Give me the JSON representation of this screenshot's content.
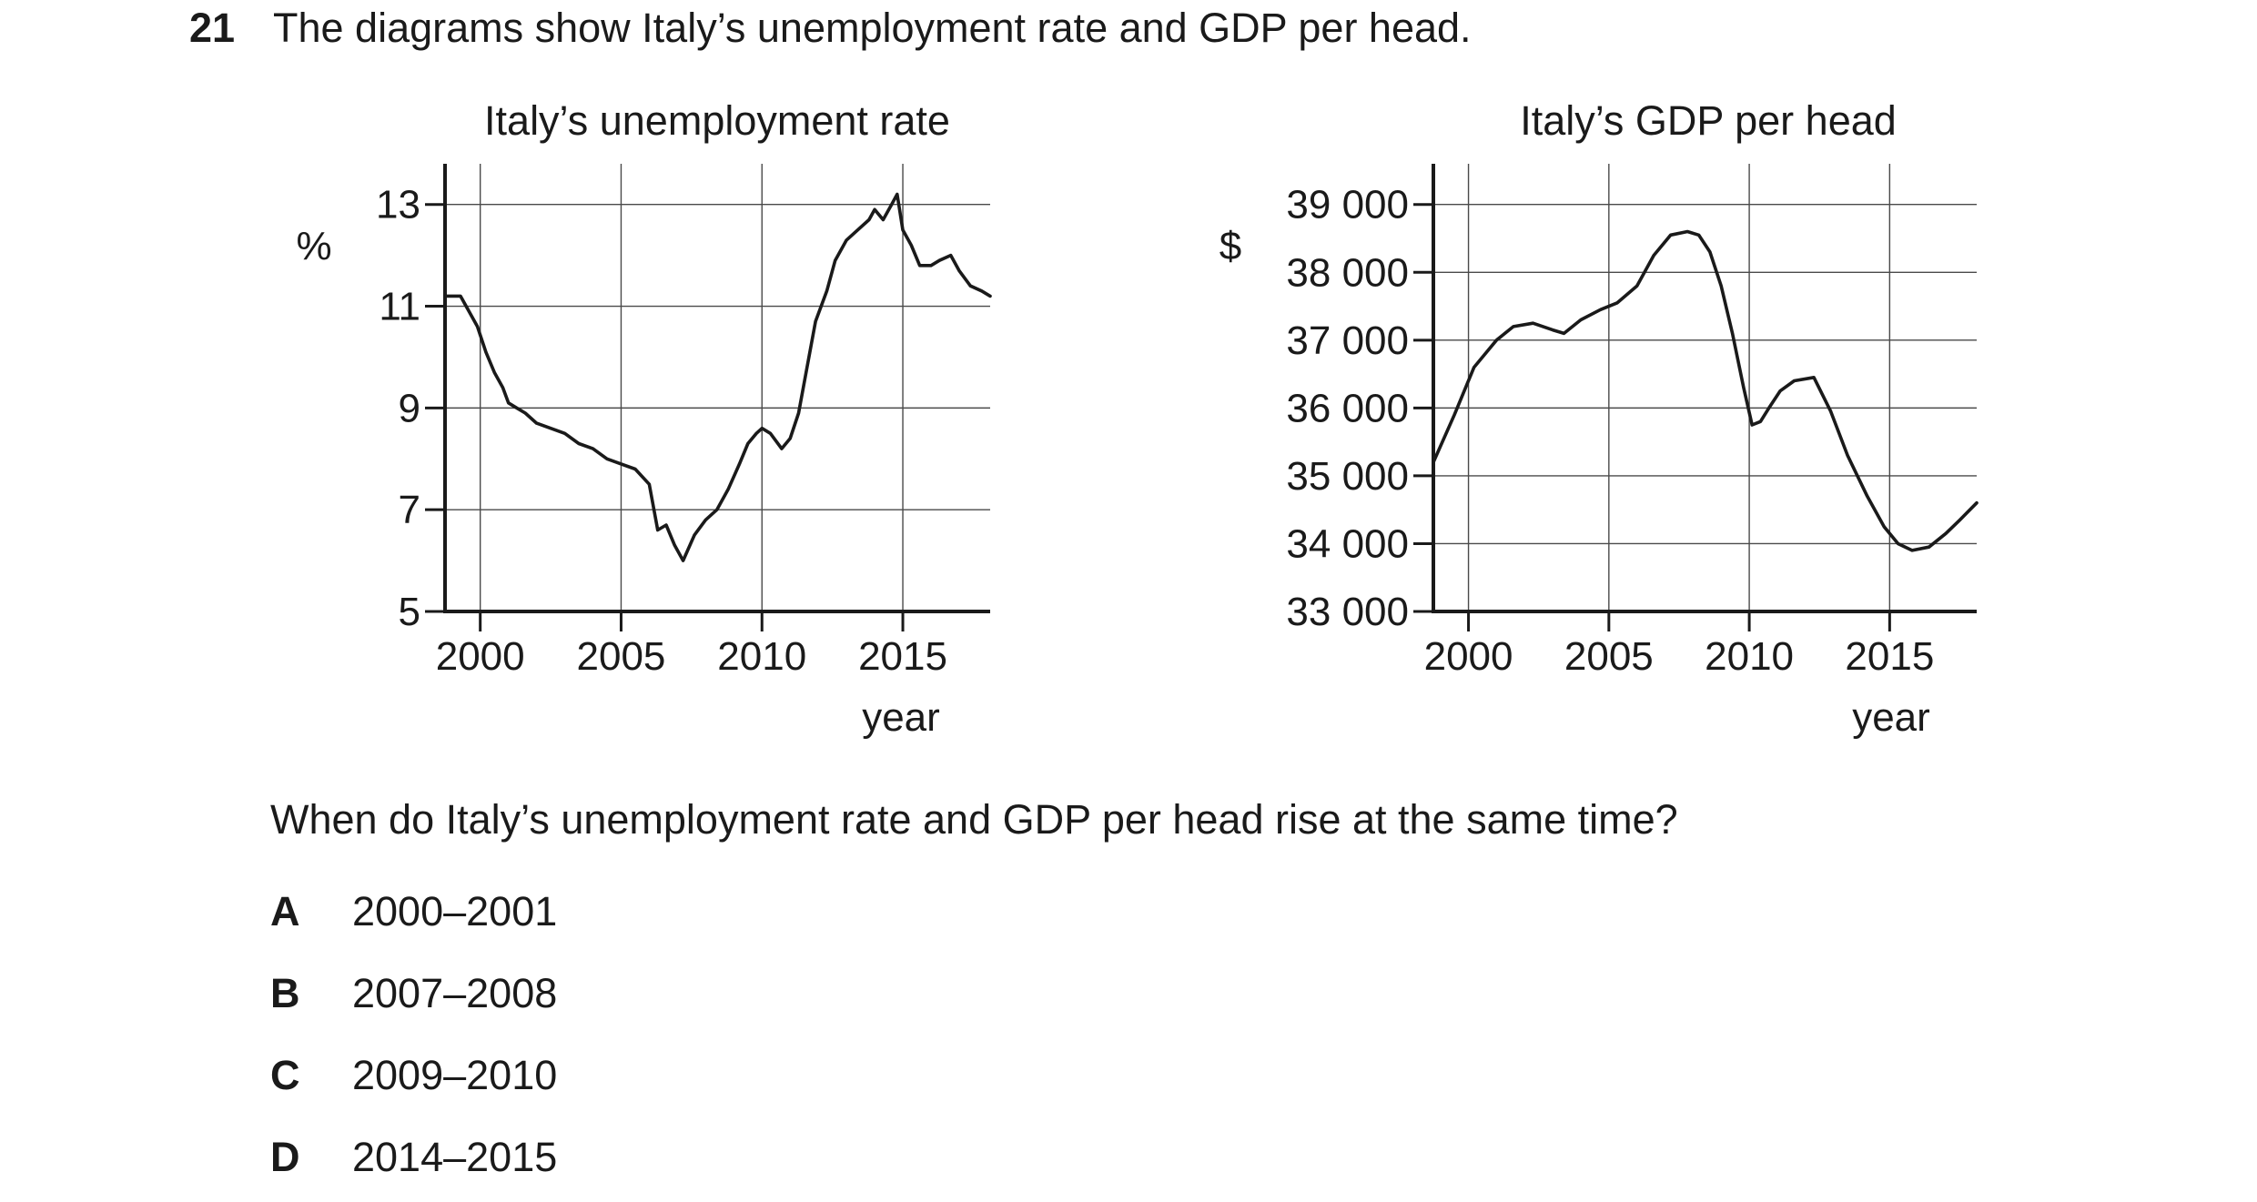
{
  "question": {
    "number": "21",
    "intro": "The diagrams show Italy’s unemployment rate and GDP per head.",
    "prompt": "When do Italy’s unemployment rate and GDP per head rise at the same time?",
    "options": [
      {
        "letter": "A",
        "text": "2000–2001"
      },
      {
        "letter": "B",
        "text": "2007–2008"
      },
      {
        "letter": "C",
        "text": "2009–2010"
      },
      {
        "letter": "D",
        "text": "2014–2015"
      }
    ]
  },
  "chart_data": [
    {
      "type": "line",
      "title": "Italy’s unemployment rate",
      "ylabel": "%",
      "xlabel": "year",
      "xlim": [
        1998.75,
        2018.1
      ],
      "ylim": [
        5,
        13.8
      ],
      "xticks": [
        2000,
        2005,
        2010,
        2015
      ],
      "xtick_labels": [
        "2000",
        "2005",
        "2010",
        "2015"
      ],
      "yticks": [
        5,
        7,
        9,
        11,
        13
      ],
      "ytick_labels": [
        "5",
        "7",
        "9",
        "11",
        "13"
      ],
      "grid": true,
      "color": "#1a1a1a",
      "series": [
        {
          "x": [
            1998.75,
            1999.3,
            1999.6,
            1999.9,
            2000.2,
            2000.5,
            2000.8,
            2001.0,
            2001.3,
            2001.6,
            2002.0,
            2002.5,
            2003.0,
            2003.5,
            2004.0,
            2004.5,
            2005.0,
            2005.5,
            2006.0,
            2006.3,
            2006.6,
            2006.9,
            2007.2,
            2007.6,
            2008.0,
            2008.4,
            2008.8,
            2009.2,
            2009.5,
            2009.8,
            2010.0,
            2010.3,
            2010.7,
            2011.0,
            2011.3,
            2011.6,
            2011.9,
            2012.3,
            2012.6,
            2013.0,
            2013.4,
            2013.8,
            2014.0,
            2014.3,
            2014.6,
            2014.8,
            2015.0,
            2015.3,
            2015.6,
            2016.0,
            2016.3,
            2016.7,
            2017.0,
            2017.4,
            2017.8,
            2018.1
          ],
          "y": [
            11.2,
            11.2,
            10.9,
            10.6,
            10.1,
            9.7,
            9.4,
            9.1,
            9.0,
            8.9,
            8.7,
            8.6,
            8.5,
            8.3,
            8.2,
            8.0,
            7.9,
            7.8,
            7.5,
            6.6,
            6.7,
            6.3,
            6.0,
            6.5,
            6.8,
            7.0,
            7.4,
            7.9,
            8.3,
            8.5,
            8.6,
            8.5,
            8.2,
            8.4,
            8.9,
            9.8,
            10.7,
            11.3,
            11.9,
            12.3,
            12.5,
            12.7,
            12.9,
            12.7,
            13.0,
            13.2,
            12.5,
            12.2,
            11.8,
            11.8,
            11.9,
            12.0,
            11.7,
            11.4,
            11.3,
            11.2
          ]
        }
      ]
    },
    {
      "type": "line",
      "title": "Italy’s GDP per head",
      "ylabel": "$",
      "xlabel": "year",
      "xlim": [
        1998.75,
        2018.1
      ],
      "ylim": [
        33000,
        39600
      ],
      "xticks": [
        2000,
        2005,
        2010,
        2015
      ],
      "xtick_labels": [
        "2000",
        "2005",
        "2010",
        "2015"
      ],
      "yticks": [
        33000,
        34000,
        35000,
        36000,
        37000,
        38000,
        39000
      ],
      "ytick_labels": [
        "33 000",
        "34 000",
        "35 000",
        "36 000",
        "37 000",
        "38 000",
        "39 000"
      ],
      "grid": true,
      "color": "#1a1a1a",
      "series": [
        {
          "x": [
            1998.75,
            1999.5,
            2000.2,
            2001.0,
            2001.6,
            2002.3,
            2003.0,
            2003.4,
            2004.0,
            2004.7,
            2005.3,
            2006.0,
            2006.6,
            2007.2,
            2007.8,
            2008.2,
            2008.6,
            2009.0,
            2009.4,
            2009.8,
            2010.1,
            2010.4,
            2010.7,
            2011.1,
            2011.6,
            2012.3,
            2012.9,
            2013.5,
            2014.2,
            2014.8,
            2015.3,
            2015.8,
            2016.4,
            2017.0,
            2017.5,
            2018.1
          ],
          "y": [
            35200,
            35900,
            36600,
            37000,
            37200,
            37250,
            37150,
            37100,
            37300,
            37450,
            37550,
            37800,
            38250,
            38550,
            38600,
            38550,
            38300,
            37800,
            37100,
            36300,
            35750,
            35800,
            36000,
            36250,
            36400,
            36450,
            35950,
            35300,
            34700,
            34250,
            34000,
            33900,
            33950,
            34150,
            34350,
            34600
          ]
        }
      ]
    }
  ]
}
